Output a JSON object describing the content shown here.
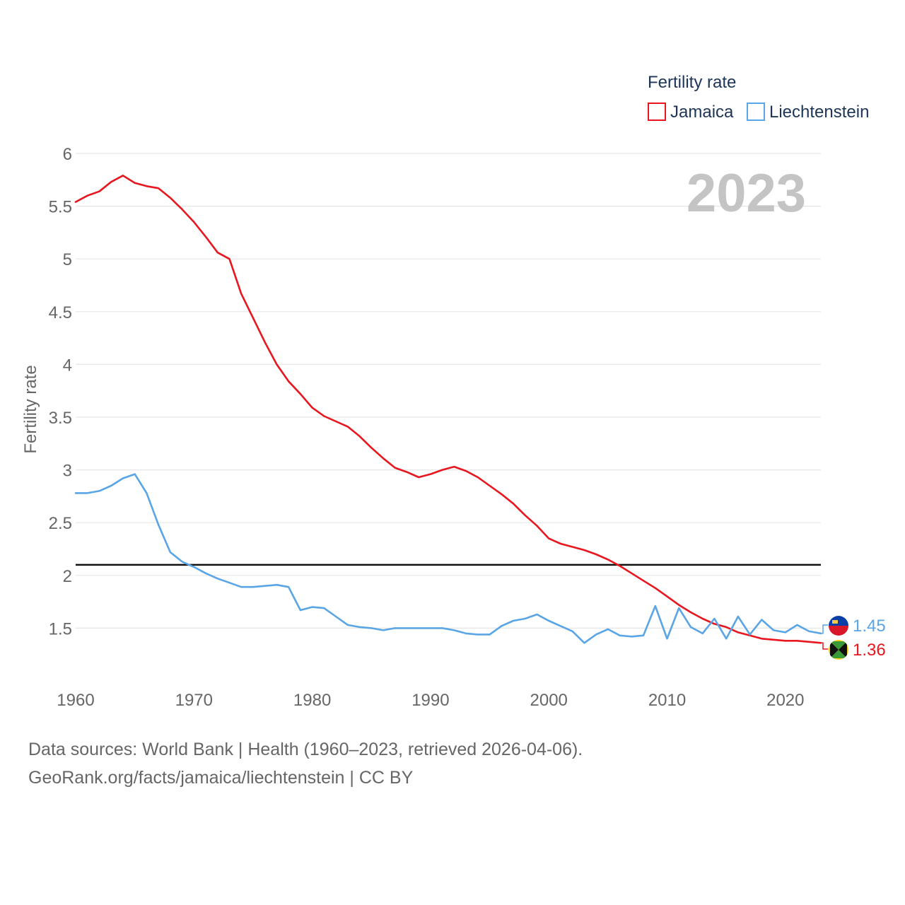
{
  "chart_data": {
    "type": "line",
    "title": "",
    "xlabel": "",
    "ylabel": "Fertility rate",
    "year_label": "2023",
    "xlim": [
      1960,
      2023
    ],
    "ylim": [
      1.0,
      6.0
    ],
    "x_ticks": [
      1960,
      1970,
      1980,
      1990,
      2000,
      2010,
      2020
    ],
    "y_ticks": [
      1.5,
      2,
      2.5,
      3,
      3.5,
      4,
      4.5,
      5,
      5.5,
      6
    ],
    "legend": {
      "title": "Fertility rate",
      "position": "top-right"
    },
    "reference_line": {
      "value": 2.1
    },
    "x": [
      1960,
      1961,
      1962,
      1963,
      1964,
      1965,
      1966,
      1967,
      1968,
      1969,
      1970,
      1971,
      1972,
      1973,
      1974,
      1975,
      1976,
      1977,
      1978,
      1979,
      1980,
      1981,
      1982,
      1983,
      1984,
      1985,
      1986,
      1987,
      1988,
      1989,
      1990,
      1991,
      1992,
      1993,
      1994,
      1995,
      1996,
      1997,
      1998,
      1999,
      2000,
      2001,
      2002,
      2003,
      2004,
      2005,
      2006,
      2007,
      2008,
      2009,
      2010,
      2011,
      2012,
      2013,
      2014,
      2015,
      2016,
      2017,
      2018,
      2019,
      2020,
      2021,
      2022,
      2023
    ],
    "series": [
      {
        "name": "Jamaica",
        "color": "#e8171f",
        "end_label": "1.36",
        "values": [
          5.54,
          5.6,
          5.64,
          5.73,
          5.79,
          5.72,
          5.69,
          5.67,
          5.58,
          5.47,
          5.35,
          5.21,
          5.06,
          5.0,
          4.67,
          4.44,
          4.21,
          4.0,
          3.84,
          3.72,
          3.59,
          3.51,
          3.46,
          3.41,
          3.32,
          3.21,
          3.11,
          3.02,
          2.98,
          2.93,
          2.96,
          3.0,
          3.03,
          2.99,
          2.93,
          2.85,
          2.77,
          2.68,
          2.57,
          2.47,
          2.35,
          2.3,
          2.27,
          2.24,
          2.2,
          2.15,
          2.09,
          2.02,
          1.95,
          1.88,
          1.8,
          1.72,
          1.65,
          1.59,
          1.54,
          1.51,
          1.46,
          1.43,
          1.4,
          1.39,
          1.38,
          1.38,
          1.37,
          1.36
        ]
      },
      {
        "name": "Liechtenstein",
        "color": "#5aa5e6",
        "end_label": "1.45",
        "values": [
          2.78,
          2.78,
          2.8,
          2.85,
          2.92,
          2.96,
          2.78,
          2.48,
          2.22,
          2.13,
          2.08,
          2.02,
          1.97,
          1.93,
          1.89,
          1.89,
          1.9,
          1.91,
          1.89,
          1.67,
          1.7,
          1.69,
          1.61,
          1.53,
          1.51,
          1.5,
          1.48,
          1.5,
          1.5,
          1.5,
          1.5,
          1.5,
          1.48,
          1.45,
          1.44,
          1.44,
          1.52,
          1.57,
          1.59,
          1.63,
          1.57,
          1.52,
          1.47,
          1.36,
          1.44,
          1.49,
          1.43,
          1.42,
          1.43,
          1.71,
          1.4,
          1.69,
          1.51,
          1.45,
          1.59,
          1.4,
          1.61,
          1.44,
          1.58,
          1.48,
          1.46,
          1.53,
          1.47,
          1.45
        ]
      }
    ]
  },
  "footer": {
    "line1": "Data sources: World Bank | Health (1960–2023, retrieved 2026-04-06).",
    "line2": "GeoRank.org/facts/jamaica/liechtenstein | CC BY"
  },
  "flags": {
    "jamaica": "jamaica-flag-icon",
    "liechtenstein": "liechtenstein-flag-icon"
  }
}
